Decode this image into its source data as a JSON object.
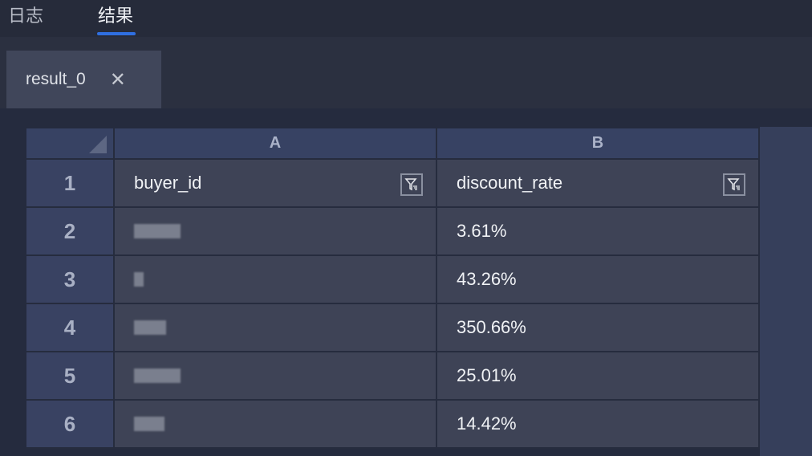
{
  "top_tabs": [
    {
      "label": "日志",
      "active": false
    },
    {
      "label": "结果",
      "active": true
    }
  ],
  "result_tab": {
    "label": "result_0",
    "close_icon": "close-icon"
  },
  "accent_color": "#2f6fe0",
  "columns": [
    "A",
    "B"
  ],
  "rows": [
    {
      "n": "1",
      "a": "buyer_id",
      "b": "discount_rate",
      "header": true
    },
    {
      "n": "2",
      "a": "",
      "b": "3.61%"
    },
    {
      "n": "3",
      "a": "",
      "b": "43.26%"
    },
    {
      "n": "4",
      "a": "",
      "b": "350.66%"
    },
    {
      "n": "5",
      "a": "",
      "b": "25.01%"
    },
    {
      "n": "6",
      "a": "",
      "b": "14.42%"
    }
  ]
}
